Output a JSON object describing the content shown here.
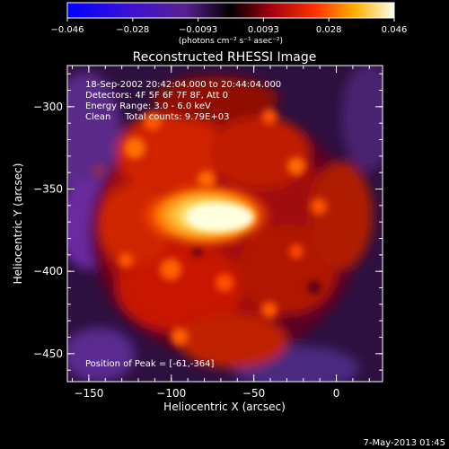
{
  "colorbar": {
    "ticks": [
      "-0.046",
      "-0.028",
      "-0.0093",
      "0.0093",
      "0.028",
      "0.046"
    ],
    "unit_label": "(photons cm⁻² s⁻¹ asec⁻²)"
  },
  "title": "Reconstructed RHESSI Image",
  "info": {
    "time_range": "18-Sep-2002 20:42:04.000 to 20:44:04.000",
    "detectors": "Detectors: 4F 5F 6F 7F 8F, Att 0",
    "energy": "Energy Range: 3.0 - 6.0 keV",
    "clean": "Clean     Total counts: 9.79E+03",
    "peak": "Position of Peak = [-61,-364]"
  },
  "axes": {
    "xlabel": "Heliocentric X (arcsec)",
    "ylabel": "Heliocentric Y (arcsec)",
    "xticks": [
      {
        "value": -150,
        "label": "−150"
      },
      {
        "value": -100,
        "label": "−100"
      },
      {
        "value": -50,
        "label": "−50"
      },
      {
        "value": 0,
        "label": "0"
      }
    ],
    "yticks": [
      {
        "value": -300,
        "label": "−300"
      },
      {
        "value": -350,
        "label": "−350"
      },
      {
        "value": -400,
        "label": "−400"
      },
      {
        "value": -450,
        "label": "−450"
      }
    ],
    "xlim": [
      -163,
      28
    ],
    "ylim": [
      -467,
      -275
    ]
  },
  "timestamp": "7-May-2013 01:45",
  "colors": {
    "background": "#000000",
    "hot_core": "#ffffe0",
    "orange": "#ff8c00",
    "red": "#d02000",
    "dark_red": "#4a0015",
    "purple": "#5a2a8a"
  }
}
